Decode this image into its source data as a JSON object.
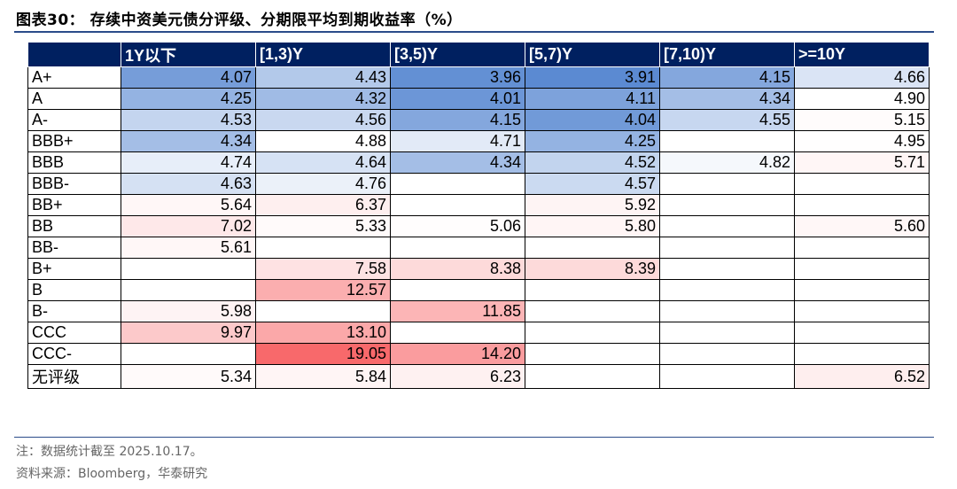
{
  "title": "图表30： 存续中资美元债分评级、分期限平均到期收益率（%）",
  "note": "注：数据统计截至 2025.10.17。",
  "source": "资料来源：Bloomberg，华泰研究",
  "colors": {
    "header_bg": "#002060",
    "low": "#5b8ad2",
    "mid": "#ffffff",
    "high": "#f8696b"
  },
  "chart_data": {
    "type": "heatmap",
    "title": "存续中资美元债分评级、分期限平均到期收益率（%）",
    "columns": [
      "1Y以下",
      "[1,3)Y",
      "[3,5)Y",
      "[5,7)Y",
      "[7,10)Y",
      ">=10Y"
    ],
    "rows": [
      "A+",
      "A",
      "A-",
      "BBB+",
      "BBB",
      "BBB-",
      "BB+",
      "BB",
      "BB-",
      "B+",
      "B",
      "B-",
      "CCC",
      "CCC-",
      "无评级"
    ],
    "values": [
      [
        "4.07",
        "4.43",
        "3.96",
        "3.91",
        "4.15",
        "4.66"
      ],
      [
        "4.25",
        "4.32",
        "4.01",
        "4.11",
        "4.34",
        "4.90"
      ],
      [
        "4.53",
        "4.56",
        "4.15",
        "4.04",
        "4.55",
        "5.15"
      ],
      [
        "4.34",
        "4.88",
        "4.71",
        "4.25",
        "",
        "4.95"
      ],
      [
        "4.74",
        "4.64",
        "4.34",
        "4.52",
        "4.82",
        "5.71"
      ],
      [
        "4.63",
        "4.76",
        "",
        "4.57",
        "",
        ""
      ],
      [
        "5.64",
        "6.37",
        "",
        "5.92",
        "",
        ""
      ],
      [
        "7.02",
        "5.33",
        "5.06",
        "5.80",
        "",
        "5.60"
      ],
      [
        "5.61",
        "",
        "",
        "",
        "",
        ""
      ],
      [
        "",
        "7.58",
        "8.38",
        "8.39",
        "",
        ""
      ],
      [
        "",
        "12.57",
        "",
        "",
        "",
        ""
      ],
      [
        "5.98",
        "",
        "11.85",
        "",
        "",
        ""
      ],
      [
        "9.97",
        "13.10",
        "",
        "",
        "",
        ""
      ],
      [
        "",
        "19.05",
        "14.20",
        "",
        "",
        ""
      ],
      [
        "5.34",
        "5.84",
        "6.23",
        "",
        "",
        "6.52"
      ]
    ]
  }
}
